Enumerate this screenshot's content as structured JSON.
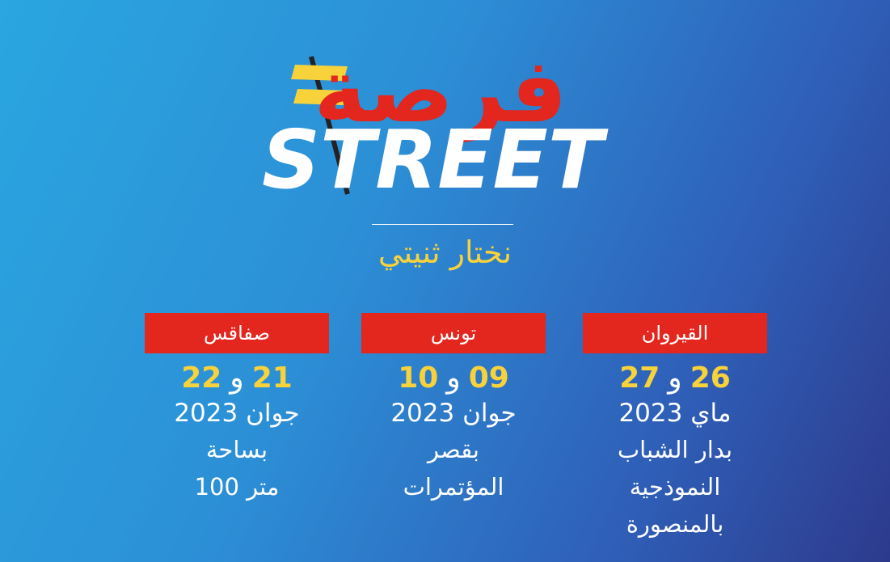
{
  "logo": {
    "arabic": "فرصة",
    "latin": "STREET"
  },
  "subtitle": "نختار ثنيتي",
  "events": [
    {
      "city": "القيروان",
      "day1": "26",
      "joiner": "و",
      "day2": "27",
      "month_year": "ماي 2023",
      "venue": [
        "بدار الشباب",
        "النموذجية",
        "بالمنصورة"
      ]
    },
    {
      "city": "تونس",
      "day1": "09",
      "joiner": "و",
      "day2": "10",
      "month_year": "جوان 2023",
      "venue": [
        "بقصر",
        "المؤتمرات"
      ]
    },
    {
      "city": "صفاقس",
      "day1": "21",
      "joiner": "و",
      "day2": "22",
      "month_year": "جوان 2023",
      "venue": [
        "بساحة",
        "متر 100"
      ]
    }
  ]
}
